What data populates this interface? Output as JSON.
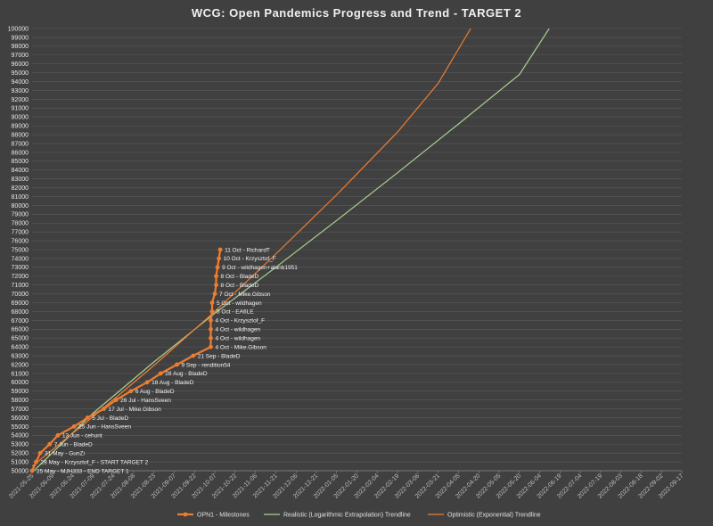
{
  "chart_data": {
    "type": "line",
    "title": "WCG: Open Pandemics Progress and Trend - TARGET 2",
    "xlabel": "",
    "ylabel": "",
    "xlim": [
      "2021-05-25",
      "2022-09-17"
    ],
    "ylim": [
      50000,
      100000
    ],
    "y_major_step": 1000,
    "grid": "horizontal",
    "legend_position": "bottom",
    "x_ticks": [
      "2021-05-25",
      "2021-06-09",
      "2021-06-24",
      "2021-07-09",
      "2021-07-24",
      "2021-08-08",
      "2021-08-23",
      "2021-09-07",
      "2021-09-22",
      "2021-10-07",
      "2021-10-22",
      "2021-11-06",
      "2021-11-21",
      "2021-12-06",
      "2021-12-21",
      "2022-01-05",
      "2022-01-20",
      "2022-02-04",
      "2022-02-19",
      "2022-03-06",
      "2022-03-21",
      "2022-04-05",
      "2022-04-20",
      "2022-05-05",
      "2022-05-20",
      "2022-06-04",
      "2022-06-19",
      "2022-07-04",
      "2022-07-19",
      "2022-08-03",
      "2022-08-18",
      "2022-09-02",
      "2022-09-17"
    ],
    "series": [
      {
        "name": "OPN1 - Milestones",
        "color": "#ed7d31",
        "marker": "circle",
        "points": [
          {
            "x": "2021-05-25",
            "y": 50000,
            "label": "25 May - MJH333 - END TARGET 1"
          },
          {
            "x": "2021-05-28",
            "y": 51000,
            "label": "28 May - Krzysztof_F - START TARGET 2"
          },
          {
            "x": "2021-05-31",
            "y": 52000,
            "label": "31 May - GunZi"
          },
          {
            "x": "2021-06-07",
            "y": 53000,
            "label": "7 Jun - BladeD"
          },
          {
            "x": "2021-06-13",
            "y": 54000,
            "label": "13 Jun - cehunt"
          },
          {
            "x": "2021-06-25",
            "y": 55000,
            "label": "25 Jun - HansSveen"
          },
          {
            "x": "2021-07-05",
            "y": 56000,
            "label": "5 Jul - BladeD"
          },
          {
            "x": "2021-07-17",
            "y": 57000,
            "label": "17 Jul - Mike.Gibson"
          },
          {
            "x": "2021-07-26",
            "y": 58000,
            "label": "26 Jul - HansSveen"
          },
          {
            "x": "2021-08-06",
            "y": 59000,
            "label": "6 Aug - BladeD"
          },
          {
            "x": "2021-08-18",
            "y": 60000,
            "label": "18 Aug - BladeD"
          },
          {
            "x": "2021-08-28",
            "y": 61000,
            "label": "28 Aug - BladeD"
          },
          {
            "x": "2021-09-09",
            "y": 62000,
            "label": "9 Sep - rendition54"
          },
          {
            "x": "2021-09-21",
            "y": 63000,
            "label": "21 Sep - BladeD"
          },
          {
            "x": "2021-10-04",
            "y": 64000,
            "label": "4 Oct - Mike.Gibson"
          },
          {
            "x": "2021-10-04",
            "y": 65000,
            "label": "4 Oct - wildhagen"
          },
          {
            "x": "2021-10-04",
            "y": 66000,
            "label": "4 Oct - wildhagen"
          },
          {
            "x": "2021-10-04",
            "y": 67000,
            "label": "4 Oct - Krzysztof_F"
          },
          {
            "x": "2021-10-05",
            "y": 68000,
            "label": "5 Oct - EA6LE"
          },
          {
            "x": "2021-10-05",
            "y": 69000,
            "label": "5 Oct - wildhagen"
          },
          {
            "x": "2021-10-07",
            "y": 70000,
            "label": "7 Oct - Mike.Gibson"
          },
          {
            "x": "2021-10-08",
            "y": 71000,
            "label": "8 Oct - BladeD"
          },
          {
            "x": "2021-10-08",
            "y": 72000,
            "label": "8 Oct - BladeD"
          },
          {
            "x": "2021-10-09",
            "y": 73000,
            "label": "9 Oct - wildhagen+alanb1951"
          },
          {
            "x": "2021-10-10",
            "y": 74000,
            "label": "10 Oct - Krzysztof_F"
          },
          {
            "x": "2021-10-11",
            "y": 75000,
            "label": "11 Oct - RichardT"
          }
        ]
      },
      {
        "name": "Realistic (Logarithmic Extrapolation) Trendline",
        "color": "#a9d18e",
        "points": [
          {
            "x": "2021-05-25",
            "y": 49800
          },
          {
            "x": "2021-07-09",
            "y": 56500
          },
          {
            "x": "2021-08-23",
            "y": 62300
          },
          {
            "x": "2021-10-07",
            "y": 67800
          },
          {
            "x": "2021-11-21",
            "y": 73000
          },
          {
            "x": "2022-01-05",
            "y": 78300
          },
          {
            "x": "2022-02-19",
            "y": 83700
          },
          {
            "x": "2022-04-05",
            "y": 89200
          },
          {
            "x": "2022-05-20",
            "y": 94800
          },
          {
            "x": "2022-06-11",
            "y": 100000
          }
        ]
      },
      {
        "name": "Optimistic (Exponential) Trendline",
        "color": "#ed7d31",
        "points": [
          {
            "x": "2021-05-25",
            "y": 50500
          },
          {
            "x": "2021-07-09",
            "y": 56100
          },
          {
            "x": "2021-08-23",
            "y": 61900
          },
          {
            "x": "2021-10-07",
            "y": 68000
          },
          {
            "x": "2021-11-21",
            "y": 74500
          },
          {
            "x": "2022-01-05",
            "y": 81200
          },
          {
            "x": "2022-02-19",
            "y": 88300
          },
          {
            "x": "2022-03-21",
            "y": 93800
          },
          {
            "x": "2022-04-14",
            "y": 100000
          }
        ]
      }
    ]
  }
}
